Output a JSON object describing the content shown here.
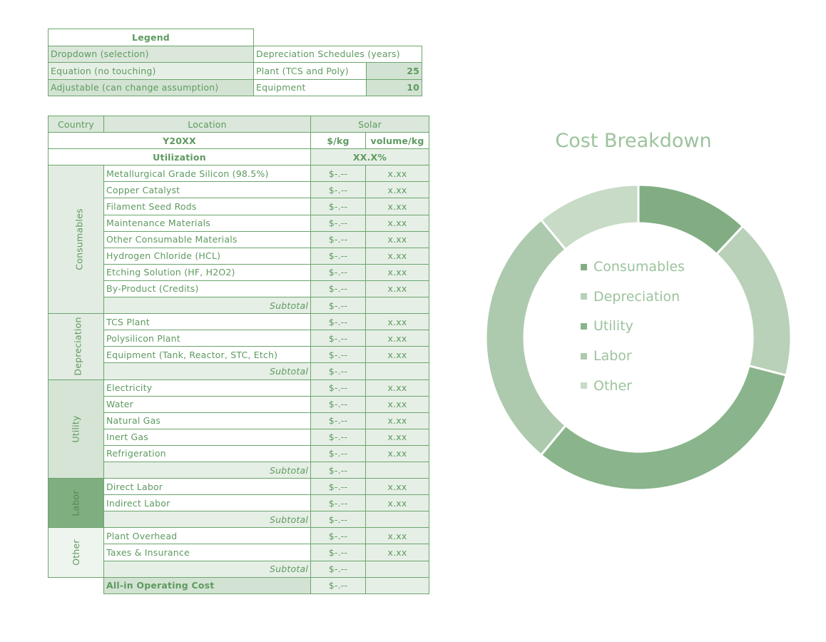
{
  "legend": {
    "title": "Legend",
    "items": [
      "Dropdown (selection)",
      "Equation (no touching)",
      "Adjustable (can change assumption)"
    ],
    "depreciation_title": "Depreciation Schedules (years)",
    "schedules": [
      {
        "label": "Plant (TCS and Poly)",
        "years": "25"
      },
      {
        "label": "Equipment",
        "years": "10"
      }
    ]
  },
  "header": {
    "country": "Country",
    "location": "Location",
    "solar": "Solar",
    "year": "Y20XX",
    "col_price": "$/kg",
    "col_volume": "volume/kg",
    "utilization_label": "Utilization",
    "utilization_value": "XX.X%"
  },
  "subtotal_label": "Subtotal",
  "groups": [
    {
      "name": "Consumables",
      "fill": "#e2ece2",
      "text": "#5e9a60",
      "items": [
        {
          "label": "Metallurgical Grade Silicon (98.5%)",
          "price": "$-.--",
          "volume": "x.xx"
        },
        {
          "label": "Copper Catalyst",
          "price": "$-.--",
          "volume": "x.xx"
        },
        {
          "label": "Filament Seed Rods",
          "price": "$-.--",
          "volume": "x.xx"
        },
        {
          "label": "Maintenance Materials",
          "price": "$-.--",
          "volume": "x.xx"
        },
        {
          "label": "Other Consumable Materials",
          "price": "$-.--",
          "volume": "x.xx"
        },
        {
          "label": "Hydrogen Chloride (HCL)",
          "price": "$-.--",
          "volume": "x.xx"
        },
        {
          "label": "Etching Solution (HF, H2O2)",
          "price": "$-.--",
          "volume": "x.xx"
        },
        {
          "label": "By-Product (Credits)",
          "price": "$-.--",
          "volume": "x.xx"
        }
      ],
      "subtotal": "$-.--"
    },
    {
      "name": "Depreciation",
      "fill": "#e2ece2",
      "text": "#5e9a60",
      "items": [
        {
          "label": "TCS Plant",
          "price": "$-.--",
          "volume": "x.xx"
        },
        {
          "label": "Polysilicon Plant",
          "price": "$-.--",
          "volume": "x.xx"
        },
        {
          "label": "Equipment (Tank, Reactor, STC, Etch)",
          "price": "$-.--",
          "volume": "x.xx"
        }
      ],
      "subtotal": "$-.--"
    },
    {
      "name": "Utility",
      "fill": "#d5e4d5",
      "text": "#5e9a60",
      "items": [
        {
          "label": "Electricity",
          "price": "$-.--",
          "volume": "x.xx"
        },
        {
          "label": "Water",
          "price": "$-.--",
          "volume": "x.xx"
        },
        {
          "label": "Natural Gas",
          "price": "$-.--",
          "volume": "x.xx"
        },
        {
          "label": "Inert Gas",
          "price": "$-.--",
          "volume": "x.xx"
        },
        {
          "label": "Refrigeration",
          "price": "$-.--",
          "volume": "x.xx"
        }
      ],
      "subtotal": "$-.--"
    },
    {
      "name": "Labor",
      "fill": "#7fae80",
      "text": "#4f8a51",
      "items": [
        {
          "label": "Direct Labor",
          "price": "$-.--",
          "volume": "x.xx"
        },
        {
          "label": "Indirect Labor",
          "price": "$-.--",
          "volume": "x.xx"
        }
      ],
      "subtotal": "$-.--"
    },
    {
      "name": "Other",
      "fill": "#eef4ee",
      "text": "#5e9a60",
      "items": [
        {
          "label": "Plant Overhead",
          "price": "$-.--",
          "volume": "x.xx"
        },
        {
          "label": "Taxes & Insurance",
          "price": "$-.--",
          "volume": "x.xx"
        }
      ],
      "subtotal": "$-.--"
    }
  ],
  "total": {
    "label": "All-in Operating Cost",
    "price": "$-.--"
  },
  "chart_data": {
    "type": "pie",
    "variant": "doughnut",
    "title": "Cost Breakdown",
    "categories": [
      "Consumables",
      "Depreciation",
      "Utility",
      "Labor",
      "Other"
    ],
    "values": [
      12,
      17,
      32,
      28,
      11
    ],
    "colors": [
      "#82ad83",
      "#b8d1b8",
      "#8ab48b",
      "#aecaae",
      "#c7dbc7"
    ],
    "legend": "center"
  }
}
